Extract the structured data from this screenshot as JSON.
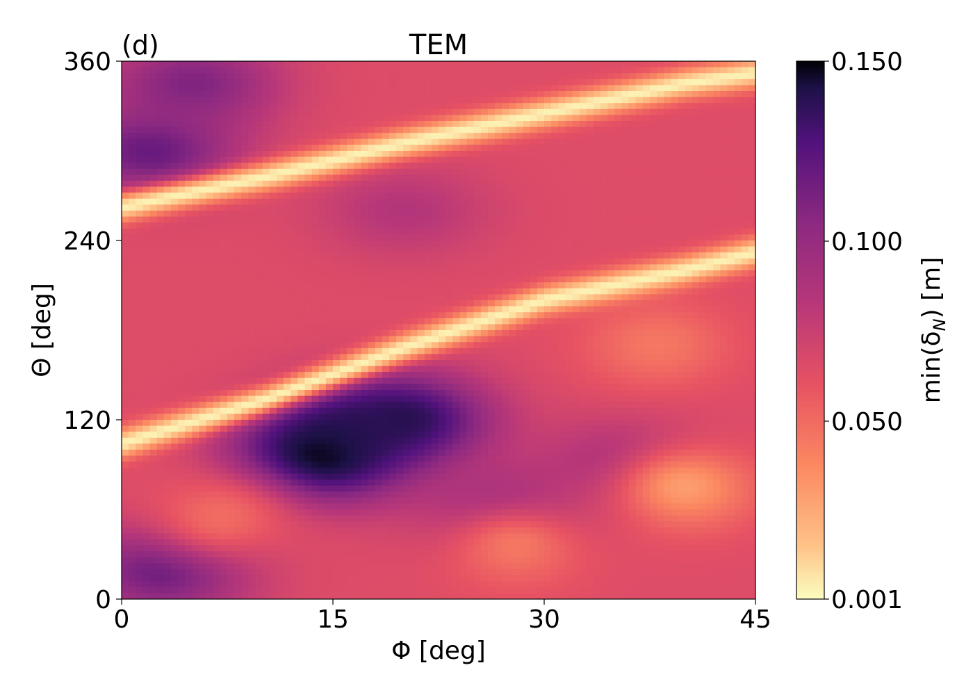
{
  "chart_data": {
    "type": "heatmap",
    "panel_label": "(d)",
    "title": "TEM",
    "xlabel": "Φ [deg]",
    "ylabel": "Θ [deg]",
    "xlim": [
      0,
      45
    ],
    "ylim": [
      0,
      360
    ],
    "xticks": [
      "0",
      "15",
      "30",
      "45"
    ],
    "yticks": [
      "0",
      "120",
      "240",
      "360"
    ],
    "colorbar": {
      "label": "min(δ_N) [m]",
      "label_main": "min(δ",
      "label_sub": "N",
      "label_tail": ") [m]",
      "min": 0.001,
      "max": 0.15,
      "ticks": [
        "0.001",
        "0.050",
        "0.100",
        "0.150"
      ],
      "tick_values": [
        0.001,
        0.05,
        0.1,
        0.15
      ],
      "colormap": "magma_r"
    },
    "features": {
      "background_value": 0.065,
      "ridges": [
        {
          "name": "upper-low-band",
          "value": 0.004,
          "points": [
            [
              0,
              262
            ],
            [
              10,
              282
            ],
            [
              20,
              305
            ],
            [
              30,
              325
            ],
            [
              40,
              345
            ],
            [
              45,
              352
            ]
          ]
        },
        {
          "name": "lower-low-band",
          "value": 0.004,
          "points": [
            [
              0,
              104
            ],
            [
              10,
              133
            ],
            [
              20,
              168
            ],
            [
              30,
              200
            ],
            [
              40,
              220
            ],
            [
              45,
              232
            ]
          ]
        }
      ],
      "high_regions": [
        {
          "x": 16,
          "y": 112,
          "value": 0.13
        },
        {
          "x": 14,
          "y": 95,
          "value": 0.15
        },
        {
          "x": 20,
          "y": 120,
          "value": 0.14
        },
        {
          "x": 3,
          "y": 20,
          "value": 0.12
        },
        {
          "x": 2,
          "y": 300,
          "value": 0.12
        },
        {
          "x": 5,
          "y": 345,
          "value": 0.11
        },
        {
          "x": 27,
          "y": 60,
          "value": 0.1
        },
        {
          "x": 36,
          "y": 90,
          "value": 0.095
        },
        {
          "x": 20,
          "y": 260,
          "value": 0.085
        }
      ],
      "low_regions": [
        {
          "x": 40,
          "y": 75,
          "value": 0.03
        },
        {
          "x": 38,
          "y": 170,
          "value": 0.045
        },
        {
          "x": 28,
          "y": 35,
          "value": 0.045
        },
        {
          "x": 7,
          "y": 55,
          "value": 0.05
        }
      ]
    }
  }
}
